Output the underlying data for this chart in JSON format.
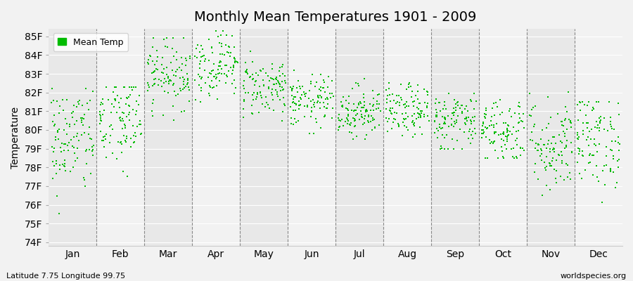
{
  "title": "Monthly Mean Temperatures 1901 - 2009",
  "ylabel": "Temperature",
  "xlabel_labels": [
    "Jan",
    "Feb",
    "Mar",
    "Apr",
    "May",
    "Jun",
    "Jul",
    "Aug",
    "Sep",
    "Oct",
    "Nov",
    "Dec"
  ],
  "ytick_labels": [
    "74F",
    "75F",
    "76F",
    "77F",
    "78F",
    "79F",
    "80F",
    "81F",
    "82F",
    "83F",
    "84F",
    "85F"
  ],
  "ytick_values": [
    74,
    75,
    76,
    77,
    78,
    79,
    80,
    81,
    82,
    83,
    84,
    85
  ],
  "ylim": [
    73.8,
    85.4
  ],
  "dot_color": "#00bb00",
  "bg_color_light": "#f2f2f2",
  "bg_color_dark": "#e8e8e8",
  "plot_bg": "#f2f2f2",
  "footer_left": "Latitude 7.75 Longitude 99.75",
  "footer_right": "worldspecies.org",
  "legend_label": "Mean Temp",
  "n_years": 109,
  "monthly_mean": [
    79.5,
    80.5,
    83.0,
    83.5,
    82.3,
    81.5,
    81.0,
    81.0,
    80.5,
    80.0,
    79.2,
    79.5
  ],
  "monthly_std": [
    1.5,
    1.4,
    0.9,
    0.9,
    0.8,
    0.7,
    0.7,
    0.7,
    0.8,
    0.9,
    1.3,
    1.3
  ],
  "monthly_min": [
    75.5,
    77.2,
    80.5,
    81.5,
    80.5,
    79.8,
    79.5,
    79.5,
    79.0,
    78.5,
    76.5,
    75.5
  ],
  "monthly_max": [
    82.2,
    82.3,
    84.9,
    85.3,
    84.5,
    83.5,
    83.0,
    82.5,
    82.5,
    82.5,
    82.3,
    81.5
  ],
  "seed": 42,
  "n_cols": 12,
  "xlim": [
    0,
    12
  ]
}
